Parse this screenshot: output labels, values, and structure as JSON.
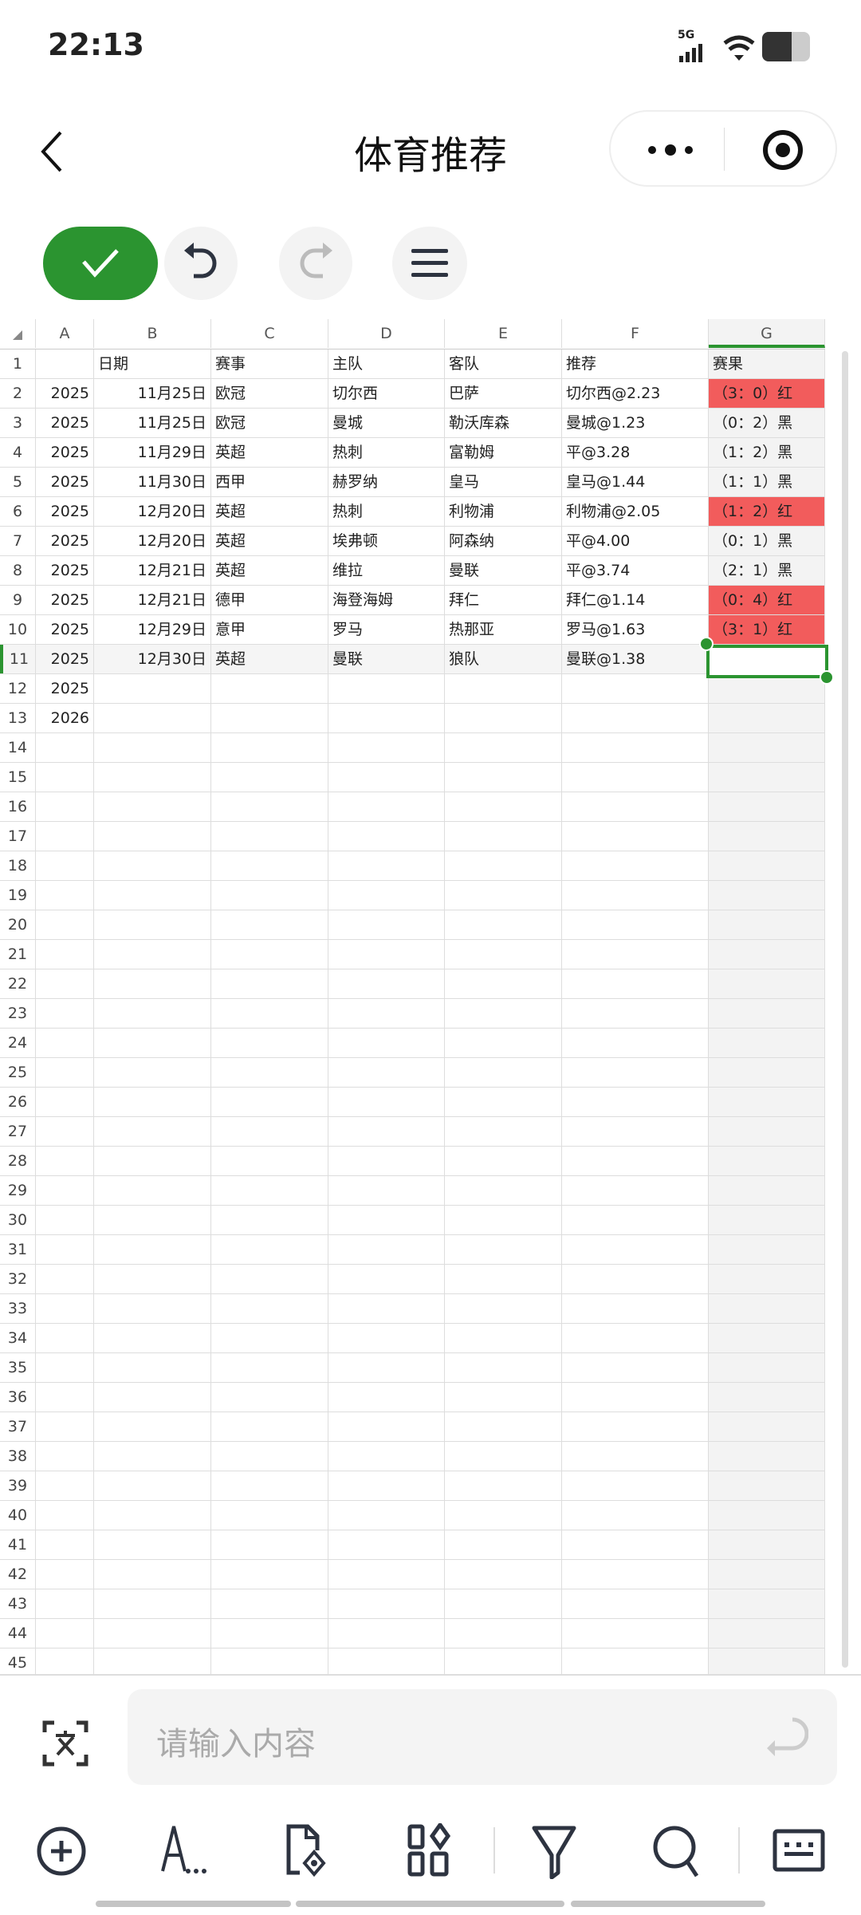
{
  "status_bar": {
    "time": "22:13",
    "network": "5G",
    "battery_level": 0.6
  },
  "header": {
    "title": "体育推荐",
    "back_icon": "chevron-left-icon",
    "more_icon": "more-dots-icon",
    "target_icon": "record-target-icon"
  },
  "toolbar": {
    "confirm_icon": "check-icon",
    "undo_icon": "undo-icon",
    "redo_icon": "redo-icon",
    "menu_icon": "hamburger-menu-icon"
  },
  "sheet": {
    "columns": [
      "A",
      "B",
      "C",
      "D",
      "E",
      "F",
      "G"
    ],
    "selected_column": "G",
    "selected_cell": "G11",
    "highlight_color": "#f25c5c",
    "accent_color": "#2b9430",
    "rows": [
      {
        "n": "1",
        "cells": [
          "",
          "日期",
          "赛事",
          "主队",
          "客队",
          "推荐",
          "赛果"
        ],
        "hl": false
      },
      {
        "n": "2",
        "cells": [
          "2025",
          "11月25日",
          "欧冠",
          "切尔西",
          "巴萨",
          "切尔西@2.23",
          "（3：0）红"
        ],
        "hl": true
      },
      {
        "n": "3",
        "cells": [
          "2025",
          "11月25日",
          "欧冠",
          "曼城",
          "勒沃库森",
          "曼城@1.23",
          "（0：2）黑"
        ],
        "hl": false
      },
      {
        "n": "4",
        "cells": [
          "2025",
          "11月29日",
          "英超",
          "热刺",
          "富勒姆",
          "平@3.28",
          "（1：2）黑"
        ],
        "hl": false
      },
      {
        "n": "5",
        "cells": [
          "2025",
          "11月30日",
          "西甲",
          "赫罗纳",
          "皇马",
          "皇马@1.44",
          "（1：1）黑"
        ],
        "hl": false
      },
      {
        "n": "6",
        "cells": [
          "2025",
          "12月20日",
          "英超",
          "热刺",
          "利物浦",
          "利物浦@2.05",
          "（1：2）红"
        ],
        "hl": true
      },
      {
        "n": "7",
        "cells": [
          "2025",
          "12月20日",
          "英超",
          "埃弗顿",
          "阿森纳",
          "平@4.00",
          "（0：1）黑"
        ],
        "hl": false
      },
      {
        "n": "8",
        "cells": [
          "2025",
          "12月21日",
          "英超",
          "维拉",
          "曼联",
          "平@3.74",
          "（2：1）黑"
        ],
        "hl": false
      },
      {
        "n": "9",
        "cells": [
          "2025",
          "12月21日",
          "德甲",
          "海登海姆",
          "拜仁",
          "拜仁@1.14",
          "（0：4）红"
        ],
        "hl": true
      },
      {
        "n": "10",
        "cells": [
          "2025",
          "12月29日",
          "意甲",
          "罗马",
          "热那亚",
          "罗马@1.63",
          "（3：1）红"
        ],
        "hl": true
      },
      {
        "n": "11",
        "cells": [
          "2025",
          "12月30日",
          "英超",
          "曼联",
          "狼队",
          "曼联@1.38",
          ""
        ],
        "hl": false
      },
      {
        "n": "12",
        "cells": [
          "2025",
          "",
          "",
          "",
          "",
          "",
          ""
        ],
        "hl": false
      },
      {
        "n": "13",
        "cells": [
          "2026",
          "",
          "",
          "",
          "",
          "",
          ""
        ],
        "hl": false
      }
    ],
    "total_rows": 45
  },
  "input": {
    "placeholder": "请输入内容",
    "ocr_icon": "text-scan-icon",
    "enter_icon": "enter-return-icon"
  },
  "bottom_bar": [
    "add-circle-icon",
    "font-style-icon",
    "file-preview-icon",
    "apps-grid-icon",
    "filter-icon",
    "search-icon",
    "keyboard-icon"
  ]
}
